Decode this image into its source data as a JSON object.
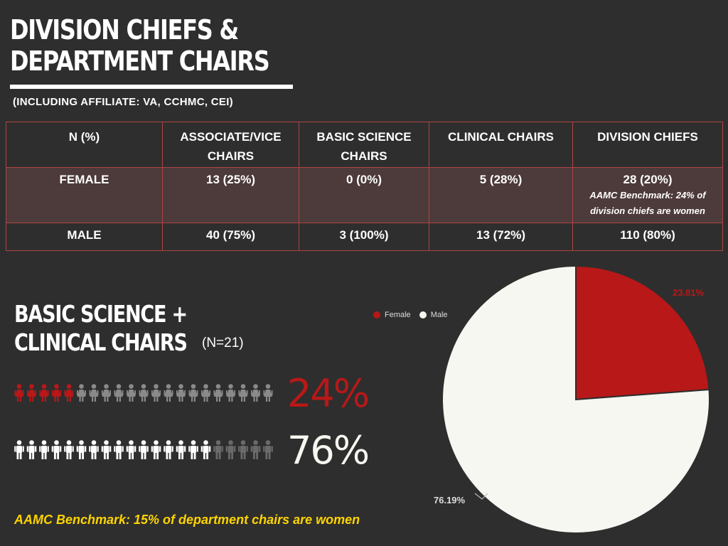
{
  "title": {
    "line1": "DIVISION CHIEFS &",
    "line2": "DEPARTMENT CHAIRS"
  },
  "subtitle": "(INCLUDING AFFILIATE: VA, CCHMC, CEI)",
  "table": {
    "header": [
      "N (%)",
      "ASSOCIATE/VICE CHAIRS",
      "BASIC SCIENCE CHAIRS",
      "CLINICAL CHAIRS",
      "DIVISION CHIEFS"
    ],
    "female": [
      "FEMALE",
      "13 (25%)",
      "0 (0%)",
      "5 (28%)",
      "28 (20%)"
    ],
    "female_note": "AAMC Benchmark: 24% of division chiefs are women",
    "male": [
      "MALE",
      "40 (75%)",
      "3 (100%)",
      "13 (72%)",
      "110 (80%)"
    ]
  },
  "section2": {
    "line1": "BASIC SCIENCE +",
    "line2": "CLINICAL CHAIRS",
    "n": "(N=21)"
  },
  "female_pct_text": "24%",
  "male_pct_text": "76%",
  "icon_rows": {
    "female_highlight": 5,
    "female_total": 21,
    "male_highlight": 16,
    "male_total": 21
  },
  "legend": {
    "female": "Female",
    "male": "Male"
  },
  "colors": {
    "female": "#b81818",
    "male": "#f6f7f0",
    "icon_gray": "#8a8a8a",
    "benchmark": "#ffd400"
  },
  "chart_data": {
    "type": "pie",
    "title": "BASIC SCIENCE + CLINICAL CHAIRS (N=21)",
    "categories": [
      "Female",
      "Male"
    ],
    "values": [
      23.81,
      76.19
    ],
    "labels": [
      "23.81%",
      "76.19%"
    ],
    "legend_position": "top-left"
  },
  "benchmark": "AAMC Benchmark: 15% of department chairs are women"
}
